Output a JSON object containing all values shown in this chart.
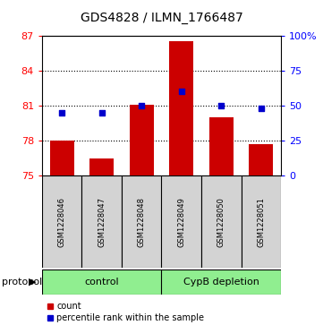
{
  "title": "GDS4828 / ILMN_1766487",
  "samples": [
    "GSM1228046",
    "GSM1228047",
    "GSM1228048",
    "GSM1228049",
    "GSM1228050",
    "GSM1228051"
  ],
  "count_values": [
    78.0,
    76.5,
    81.1,
    86.5,
    80.0,
    77.7
  ],
  "percentile_values": [
    45,
    45,
    50,
    60,
    50,
    48
  ],
  "y_min": 75,
  "y_max": 87,
  "y_ticks": [
    75,
    78,
    81,
    84,
    87
  ],
  "y2_ticks": [
    0,
    25,
    50,
    75,
    100
  ],
  "bar_color": "#cc0000",
  "dot_color": "#0000cc",
  "bar_width": 0.6,
  "group_labels": [
    "control",
    "CypB depletion"
  ],
  "group_ranges": [
    [
      0,
      3
    ],
    [
      3,
      6
    ]
  ],
  "title_fontsize": 10,
  "tick_fontsize": 8,
  "sample_fontsize": 6,
  "group_fontsize": 8,
  "legend_fontsize": 7,
  "legend_labels": [
    "count",
    "percentile rank within the sample"
  ],
  "protocol_label": "protocol"
}
